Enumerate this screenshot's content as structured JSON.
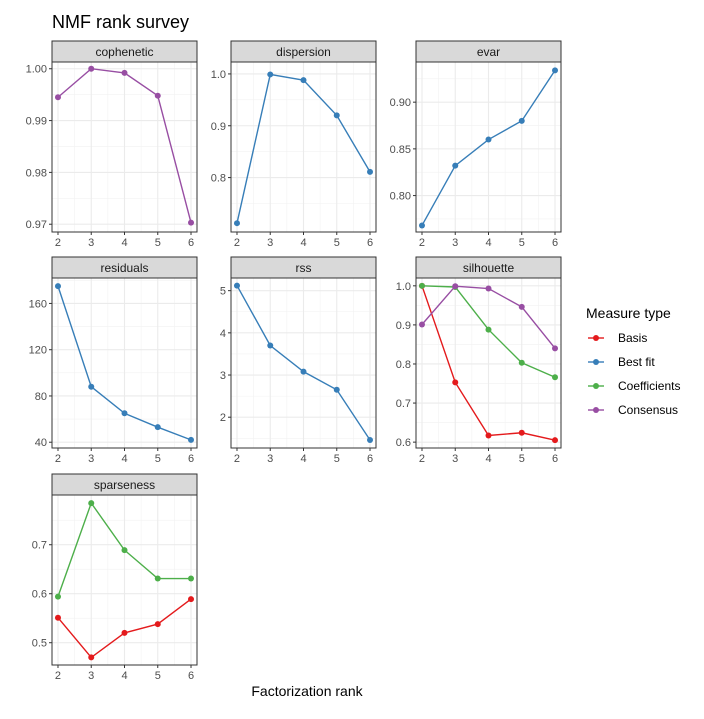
{
  "chart_data": {
    "type": "line",
    "title": "NMF rank survey",
    "xlabel": "Factorization rank",
    "ylabel": "",
    "x": [
      2,
      3,
      4,
      5,
      6
    ],
    "legend": {
      "title": "Measure type",
      "position": "right",
      "entries": [
        {
          "name": "Basis",
          "color": "#e41a1c"
        },
        {
          "name": "Best fit",
          "color": "#377eb8"
        },
        {
          "name": "Coefficients",
          "color": "#4daf4a"
        },
        {
          "name": "Consensus",
          "color": "#984ea3"
        }
      ]
    },
    "panels": [
      {
        "title": "cophenetic",
        "ylim": [
          0.9685,
          1.0013
        ],
        "yticks": [
          "0.97",
          "0.98",
          "0.99",
          "1.00"
        ],
        "ytick_values": [
          0.97,
          0.98,
          0.99,
          1.0
        ],
        "series": [
          {
            "name": "Consensus",
            "values": [
              0.9945,
              1.0,
              0.9992,
              0.9948,
              0.9703
            ]
          }
        ]
      },
      {
        "title": "dispersion",
        "ylim": [
          0.695,
          1.023
        ],
        "yticks": [
          "0.8",
          "0.9",
          "1.0"
        ],
        "ytick_values": [
          0.8,
          0.9,
          1.0
        ],
        "series": [
          {
            "name": "Best fit",
            "values": [
              0.712,
              0.999,
              0.988,
              0.92,
              0.811
            ]
          }
        ]
      },
      {
        "title": "evar",
        "ylim": [
          0.761,
          0.943
        ],
        "yticks": [
          "0.80",
          "0.85",
          "0.90"
        ],
        "ytick_values": [
          0.8,
          0.85,
          0.9
        ],
        "series": [
          {
            "name": "Best fit",
            "values": [
              0.768,
              0.832,
              0.86,
              0.88,
              0.934
            ]
          }
        ]
      },
      {
        "title": "residuals",
        "ylim": [
          35,
          182
        ],
        "yticks": [
          "40",
          "80",
          "120",
          "160"
        ],
        "ytick_values": [
          40,
          80,
          120,
          160
        ],
        "series": [
          {
            "name": "Best fit",
            "values": [
              175,
              88,
              65,
              53,
              42
            ]
          }
        ]
      },
      {
        "title": "rss",
        "ylim": [
          1.27,
          5.3
        ],
        "yticks": [
          "2",
          "3",
          "4",
          "5"
        ],
        "ytick_values": [
          2,
          3,
          4,
          5
        ],
        "series": [
          {
            "name": "Best fit",
            "values": [
              5.12,
              3.7,
              3.08,
              2.65,
              1.46
            ]
          }
        ]
      },
      {
        "title": "silhouette",
        "ylim": [
          0.585,
          1.02
        ],
        "yticks": [
          "0.6",
          "0.7",
          "0.8",
          "0.9",
          "1.0"
        ],
        "ytick_values": [
          0.6,
          0.7,
          0.8,
          0.9,
          1.0
        ],
        "series": [
          {
            "name": "Basis",
            "values": [
              1.0,
              0.753,
              0.617,
              0.624,
              0.605
            ]
          },
          {
            "name": "Coefficients",
            "values": [
              1.0,
              0.997,
              0.888,
              0.803,
              0.766
            ]
          },
          {
            "name": "Consensus",
            "values": [
              0.901,
              0.999,
              0.993,
              0.946,
              0.84
            ]
          }
        ]
      },
      {
        "title": "sparseness",
        "ylim": [
          0.4545,
          0.8015
        ],
        "yticks": [
          "0.5",
          "0.6",
          "0.7"
        ],
        "ytick_values": [
          0.5,
          0.6,
          0.7
        ],
        "series": [
          {
            "name": "Basis",
            "values": [
              0.551,
              0.47,
              0.52,
              0.538,
              0.589
            ]
          },
          {
            "name": "Coefficients",
            "values": [
              0.594,
              0.785,
              0.689,
              0.631,
              0.631
            ]
          }
        ]
      }
    ]
  }
}
